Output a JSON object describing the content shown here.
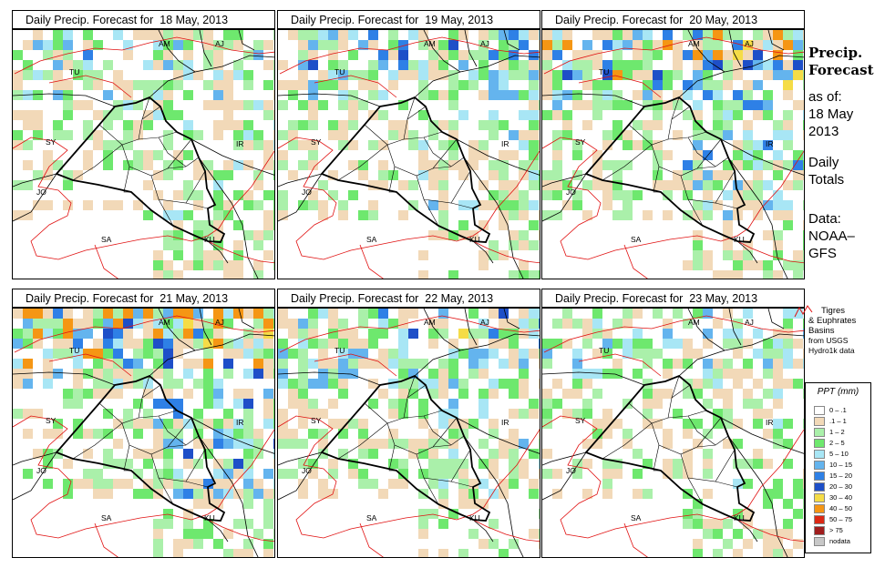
{
  "panels": [
    {
      "title": "Daily Precip. Forecast for  18 May, 2013",
      "seed": 11,
      "wet": 0.55
    },
    {
      "title": "Daily Precip. Forecast for  19 May, 2013",
      "seed": 23,
      "wet": 0.75
    },
    {
      "title": "Daily Precip. Forecast for  20 May, 2013",
      "seed": 37,
      "wet": 1.0
    },
    {
      "title": "Daily Precip. Forecast for  21 May, 2013",
      "seed": 41,
      "wet": 1.1
    },
    {
      "title": "Daily Precip. Forecast for  22 May, 2013",
      "seed": 53,
      "wet": 0.8
    },
    {
      "title": "Daily Precip. Forecast for  23 May, 2013",
      "seed": 67,
      "wet": 0.5
    }
  ],
  "country_labels": [
    "AM",
    "AJ",
    "TU",
    "SY",
    "IR",
    "JO",
    "SA",
    "KU"
  ],
  "side": {
    "title_line1": "Precip.",
    "title_line2": "Forecast",
    "asof_label": "as of:",
    "asof_date1": "18 May",
    "asof_date2": "2013",
    "totals1": "Daily",
    "totals2": "Totals",
    "data1": "Data:",
    "data2": "NOAA–",
    "data3": "GFS"
  },
  "basin_note": {
    "line1": "Tigres",
    "line2": "& Euphrates",
    "line3": "Basins",
    "line4": "from USGS",
    "line5": "Hydro1k data",
    "line_color": "#e01010"
  },
  "legend": {
    "title": "PPT (mm)",
    "items": [
      {
        "label": "0 – .1",
        "color": "#ffffff"
      },
      {
        "label": ".1 – 1",
        "color": "#f2d9b8"
      },
      {
        "label": "1 – 2",
        "color": "#aaf0aa"
      },
      {
        "label": "2 – 5",
        "color": "#6ee86e"
      },
      {
        "label": "5 – 10",
        "color": "#a8e6f5"
      },
      {
        "label": "10 – 15",
        "color": "#64b4ee"
      },
      {
        "label": "15 – 20",
        "color": "#2e80e6"
      },
      {
        "label": "20 – 30",
        "color": "#1e4fc8"
      },
      {
        "label": "30 – 40",
        "color": "#f5dc46"
      },
      {
        "label": "40 – 50",
        "color": "#f59614"
      },
      {
        "label": "50 – 75",
        "color": "#dc2814"
      },
      {
        "label": "> 75",
        "color": "#a01e1e"
      },
      {
        "label": "nodata",
        "color": "#c8c8c8"
      }
    ]
  }
}
